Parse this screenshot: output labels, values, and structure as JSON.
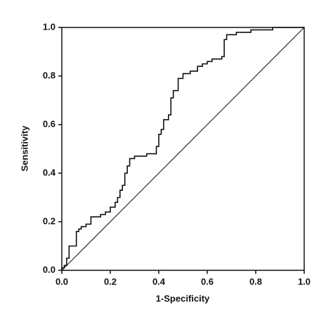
{
  "chart_data": {
    "type": "line",
    "x_label": "1-Specificity",
    "y_label": "Sensitivity",
    "xlim": [
      0,
      1
    ],
    "ylim": [
      0,
      1
    ],
    "xticks": [
      {
        "value": 0,
        "label": "0.0"
      },
      0.2,
      0.4,
      0.6,
      0.8,
      {
        "value": 1,
        "label": "1.0"
      }
    ],
    "yticks": [
      {
        "value": 0,
        "label": "0.0"
      },
      0.2,
      0.4,
      0.6,
      0.8,
      {
        "value": 1,
        "label": "1.0"
      }
    ],
    "series": [
      {
        "color": "#111111",
        "x": [
          0,
          0,
          0.01,
          0.01,
          0.02,
          0.02,
          0.03,
          0.03,
          0.06,
          0.06,
          0.07,
          0.07,
          0.08,
          0.08,
          0.1,
          0.1,
          0.12,
          0.12,
          0.16,
          0.16,
          0.18,
          0.18,
          0.2,
          0.2,
          0.22,
          0.22,
          0.23,
          0.23,
          0.24,
          0.24,
          0.25,
          0.25,
          0.26,
          0.26,
          0.27,
          0.27,
          0.28,
          0.28,
          0.3,
          0.3,
          0.35,
          0.35,
          0.39,
          0.39,
          0.4,
          0.4,
          0.41,
          0.41,
          0.42,
          0.42,
          0.44,
          0.44,
          0.45,
          0.45,
          0.46,
          0.46,
          0.48,
          0.48,
          0.5,
          0.5,
          0.53,
          0.53,
          0.56,
          0.56,
          0.58,
          0.58,
          0.6,
          0.6,
          0.62,
          0.62,
          0.66,
          0.66,
          0.67,
          0.67,
          0.68,
          0.68,
          0.72,
          0.72,
          0.78,
          0.78,
          0.87,
          0.87,
          1
        ],
        "values": [
          0,
          0.01,
          0.01,
          0.02,
          0.02,
          0.05,
          0.05,
          0.1,
          0.1,
          0.16,
          0.16,
          0.17,
          0.17,
          0.18,
          0.18,
          0.19,
          0.19,
          0.22,
          0.22,
          0.23,
          0.23,
          0.24,
          0.24,
          0.26,
          0.26,
          0.28,
          0.28,
          0.3,
          0.3,
          0.33,
          0.33,
          0.35,
          0.35,
          0.4,
          0.4,
          0.43,
          0.43,
          0.46,
          0.46,
          0.47,
          0.47,
          0.48,
          0.48,
          0.51,
          0.51,
          0.56,
          0.56,
          0.58,
          0.58,
          0.62,
          0.62,
          0.64,
          0.64,
          0.71,
          0.71,
          0.74,
          0.74,
          0.79,
          0.79,
          0.81,
          0.81,
          0.82,
          0.82,
          0.84,
          0.84,
          0.85,
          0.85,
          0.86,
          0.86,
          0.87,
          0.87,
          0.88,
          0.88,
          0.95,
          0.95,
          0.97,
          0.97,
          0.98,
          0.98,
          0.99,
          0.99,
          1,
          1
        ]
      },
      {
        "color": "#111111",
        "x": [
          0,
          1
        ],
        "values": [
          0,
          1
        ]
      }
    ]
  }
}
